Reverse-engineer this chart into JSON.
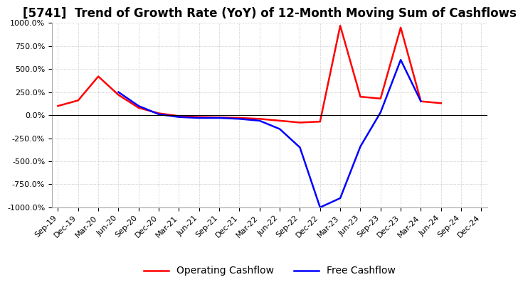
{
  "title": "[5741]  Trend of Growth Rate (YoY) of 12-Month Moving Sum of Cashflows",
  "ylim": [
    -1000,
    1000
  ],
  "yticks": [
    -1000,
    -750,
    -500,
    -250,
    0,
    250,
    500,
    750,
    1000
  ],
  "ytick_labels": [
    "-1000.0%",
    "-750.0%",
    "-500.0%",
    "-250.0%",
    "0.0%",
    "250.0%",
    "500.0%",
    "750.0%",
    "1000.0%"
  ],
  "x_labels": [
    "Sep-19",
    "Dec-19",
    "Mar-20",
    "Jun-20",
    "Sep-20",
    "Dec-20",
    "Mar-21",
    "Jun-21",
    "Sep-21",
    "Dec-21",
    "Mar-22",
    "Jun-22",
    "Sep-22",
    "Dec-22",
    "Mar-23",
    "Jun-23",
    "Sep-23",
    "Dec-23",
    "Mar-24",
    "Jun-24",
    "Sep-24",
    "Dec-24"
  ],
  "operating_cashflow": [
    100,
    160,
    420,
    220,
    80,
    20,
    -10,
    -20,
    -25,
    -30,
    -40,
    -60,
    -80,
    -70,
    970,
    200,
    180,
    950,
    150,
    130,
    null,
    null
  ],
  "free_cashflow": [
    null,
    null,
    null,
    250,
    100,
    10,
    -20,
    -30,
    -30,
    -40,
    -60,
    -150,
    -350,
    -1000,
    -900,
    -340,
    30,
    600,
    150,
    null,
    null,
    null
  ],
  "operating_color": "#ff0000",
  "free_color": "#0000ff",
  "background_color": "#ffffff",
  "grid_color": "#aaaaaa",
  "title_fontsize": 12,
  "legend_fontsize": 10,
  "tick_fontsize": 8
}
